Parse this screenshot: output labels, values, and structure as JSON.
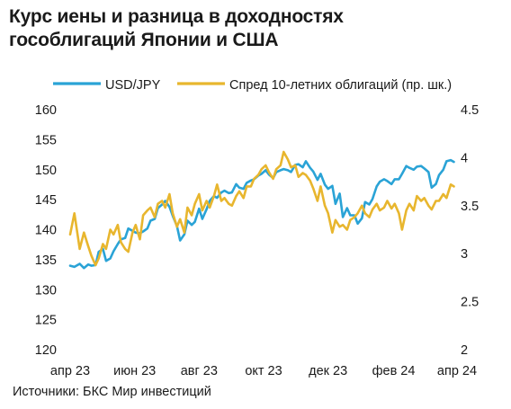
{
  "title_lines": [
    "Курс иены и разница в доходностях",
    "гособлигаций Японии и США"
  ],
  "source": "Источники: БКС Мир инвестиций",
  "chart_data": {
    "type": "line",
    "title": "Курс иены и разница в доходностях гособлигаций Японии и США",
    "x_tick_labels": [
      "апр 23",
      "июн 23",
      "авг 23",
      "окт 23",
      "дек 23",
      "фев 24",
      "апр 24"
    ],
    "y_left": {
      "ylim": [
        120,
        160
      ],
      "ticks": [
        "160",
        "155",
        "150",
        "145",
        "140",
        "135",
        "130",
        "125",
        "120"
      ]
    },
    "y_right": {
      "ylim": [
        2,
        4.5
      ],
      "ticks": [
        "4.5",
        "4",
        "3.5",
        "3",
        "2.5",
        "2"
      ]
    },
    "grid": false,
    "legend_position": "top",
    "series": [
      {
        "name": "USD/JPY",
        "axis": "left",
        "color": "#2aa3d6",
        "x": [
          "2023-04-01",
          "2023-04-05",
          "2023-04-10",
          "2023-04-14",
          "2023-04-18",
          "2023-04-21",
          "2023-04-25",
          "2023-04-28",
          "2023-05-02",
          "2023-05-05",
          "2023-05-09",
          "2023-05-12",
          "2023-05-16",
          "2023-05-19",
          "2023-05-23",
          "2023-05-26",
          "2023-05-30",
          "2023-06-02",
          "2023-06-06",
          "2023-06-09",
          "2023-06-13",
          "2023-06-16",
          "2023-06-20",
          "2023-06-23",
          "2023-06-27",
          "2023-06-30",
          "2023-07-04",
          "2023-07-07",
          "2023-07-11",
          "2023-07-14",
          "2023-07-18",
          "2023-07-21",
          "2023-07-25",
          "2023-07-28",
          "2023-08-01",
          "2023-08-04",
          "2023-08-08",
          "2023-08-11",
          "2023-08-15",
          "2023-08-18",
          "2023-08-22",
          "2023-08-25",
          "2023-08-29",
          "2023-09-01",
          "2023-09-05",
          "2023-09-08",
          "2023-09-12",
          "2023-09-15",
          "2023-09-19",
          "2023-09-22",
          "2023-09-26",
          "2023-09-29",
          "2023-10-03",
          "2023-10-06",
          "2023-10-10",
          "2023-10-13",
          "2023-10-17",
          "2023-10-20",
          "2023-10-24",
          "2023-10-27",
          "2023-10-31",
          "2023-11-03",
          "2023-11-07",
          "2023-11-10",
          "2023-11-14",
          "2023-11-17",
          "2023-11-21",
          "2023-11-24",
          "2023-11-28",
          "2023-12-01",
          "2023-12-05",
          "2023-12-08",
          "2023-12-12",
          "2023-12-15",
          "2023-12-19",
          "2023-12-22",
          "2023-12-26",
          "2023-12-29",
          "2024-01-02",
          "2024-01-05",
          "2024-01-09",
          "2024-01-12",
          "2024-01-16",
          "2024-01-19",
          "2024-01-23",
          "2024-01-26",
          "2024-01-30",
          "2024-02-02",
          "2024-02-06",
          "2024-02-09",
          "2024-02-13",
          "2024-02-16",
          "2024-02-20",
          "2024-02-23",
          "2024-02-27",
          "2024-03-01",
          "2024-03-05",
          "2024-03-08",
          "2024-03-12",
          "2024-03-15",
          "2024-03-19",
          "2024-03-22",
          "2024-03-26",
          "2024-03-29"
        ],
        "y": [
          134.0,
          133.8,
          134.3,
          133.6,
          134.2,
          134.0,
          134.1,
          136.3,
          136.8,
          134.8,
          135.2,
          136.4,
          137.6,
          138.4,
          138.6,
          140.2,
          139.8,
          139.5,
          139.4,
          139.7,
          140.2,
          141.5,
          141.8,
          143.6,
          144.2,
          144.8,
          143.8,
          142.3,
          140.6,
          138.2,
          139.2,
          141.5,
          140.8,
          141.3,
          143.5,
          141.8,
          143.4,
          144.8,
          145.6,
          145.3,
          146.2,
          146.5,
          146.1,
          146.2,
          147.6,
          147.0,
          146.8,
          147.8,
          148.2,
          148.4,
          149.0,
          149.3,
          149.9,
          149.2,
          148.6,
          149.6,
          149.9,
          150.1,
          149.9,
          149.6,
          150.8,
          150.9,
          150.4,
          151.4,
          150.3,
          149.7,
          148.3,
          149.3,
          147.5,
          146.8,
          147.3,
          144.3,
          146.0,
          142.1,
          143.6,
          142.4,
          142.4,
          141.0,
          141.9,
          144.6,
          144.2,
          145.1,
          147.2,
          148.0,
          148.4,
          148.1,
          147.6,
          148.4,
          148.4,
          149.3,
          150.6,
          150.3,
          150.0,
          150.5,
          150.6,
          150.2,
          149.6,
          147.0,
          147.6,
          149.1,
          150.0,
          151.4,
          151.6,
          151.3
        ]
      },
      {
        "name": "Спред 10-летних облигаций (пр. шк.)",
        "axis": "right",
        "color": "#e8b62e",
        "x": [
          "2023-04-01",
          "2023-04-05",
          "2023-04-10",
          "2023-04-14",
          "2023-04-18",
          "2023-04-21",
          "2023-04-25",
          "2023-04-28",
          "2023-05-02",
          "2023-05-05",
          "2023-05-09",
          "2023-05-12",
          "2023-05-16",
          "2023-05-19",
          "2023-05-23",
          "2023-05-26",
          "2023-05-30",
          "2023-06-02",
          "2023-06-06",
          "2023-06-09",
          "2023-06-13",
          "2023-06-16",
          "2023-06-20",
          "2023-06-23",
          "2023-06-27",
          "2023-06-30",
          "2023-07-04",
          "2023-07-07",
          "2023-07-11",
          "2023-07-14",
          "2023-07-18",
          "2023-07-21",
          "2023-07-25",
          "2023-07-28",
          "2023-08-01",
          "2023-08-04",
          "2023-08-08",
          "2023-08-11",
          "2023-08-15",
          "2023-08-18",
          "2023-08-22",
          "2023-08-25",
          "2023-08-29",
          "2023-09-01",
          "2023-09-05",
          "2023-09-08",
          "2023-09-12",
          "2023-09-15",
          "2023-09-19",
          "2023-09-22",
          "2023-09-26",
          "2023-09-29",
          "2023-10-03",
          "2023-10-06",
          "2023-10-10",
          "2023-10-13",
          "2023-10-17",
          "2023-10-20",
          "2023-10-24",
          "2023-10-27",
          "2023-10-31",
          "2023-11-03",
          "2023-11-07",
          "2023-11-10",
          "2023-11-14",
          "2023-11-17",
          "2023-11-21",
          "2023-11-24",
          "2023-11-28",
          "2023-12-01",
          "2023-12-05",
          "2023-12-08",
          "2023-12-12",
          "2023-12-15",
          "2023-12-19",
          "2023-12-22",
          "2023-12-26",
          "2023-12-29",
          "2024-01-02",
          "2024-01-05",
          "2024-01-09",
          "2024-01-12",
          "2024-01-16",
          "2024-01-19",
          "2024-01-23",
          "2024-01-26",
          "2024-01-30",
          "2024-02-02",
          "2024-02-06",
          "2024-02-09",
          "2024-02-13",
          "2024-02-16",
          "2024-02-20",
          "2024-02-23",
          "2024-02-27",
          "2024-03-01",
          "2024-03-05",
          "2024-03-08",
          "2024-03-12",
          "2024-03-15",
          "2024-03-19",
          "2024-03-22",
          "2024-03-26",
          "2024-03-29"
        ],
        "y": [
          3.2,
          3.42,
          3.05,
          3.22,
          3.08,
          2.98,
          2.88,
          2.95,
          3.1,
          3.05,
          3.25,
          3.2,
          3.3,
          3.12,
          3.05,
          3.02,
          3.22,
          3.3,
          3.15,
          3.4,
          3.45,
          3.48,
          3.38,
          3.52,
          3.55,
          3.48,
          3.62,
          3.42,
          3.28,
          3.36,
          3.22,
          3.48,
          3.4,
          3.52,
          3.62,
          3.45,
          3.55,
          3.48,
          3.6,
          3.72,
          3.55,
          3.58,
          3.52,
          3.5,
          3.6,
          3.65,
          3.58,
          3.7,
          3.7,
          3.78,
          3.82,
          3.88,
          3.92,
          3.85,
          3.78,
          3.88,
          3.92,
          4.06,
          3.98,
          3.9,
          3.92,
          3.8,
          3.84,
          3.82,
          3.76,
          3.68,
          3.55,
          3.7,
          3.5,
          3.42,
          3.22,
          3.35,
          3.28,
          3.3,
          3.25,
          3.35,
          3.38,
          3.42,
          3.5,
          3.42,
          3.38,
          3.46,
          3.52,
          3.45,
          3.48,
          3.55,
          3.47,
          3.52,
          3.42,
          3.25,
          3.45,
          3.52,
          3.45,
          3.6,
          3.55,
          3.58,
          3.5,
          3.46,
          3.55,
          3.55,
          3.62,
          3.58,
          3.72,
          3.7
        ]
      }
    ]
  }
}
